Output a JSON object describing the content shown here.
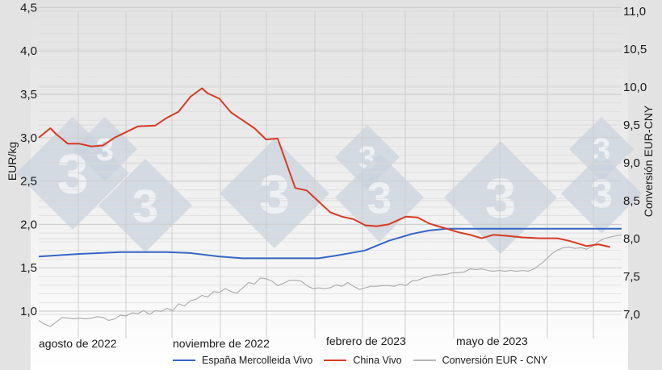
{
  "chart_data": {
    "type": "line",
    "title": "",
    "xlabel": "",
    "ylabel": "EUR/kg",
    "y2label": "Conversión EUR-CNY",
    "ylim": [
      0.8,
      4.5
    ],
    "y2lim": [
      6.8,
      11.0
    ],
    "yticks": [
      "4,5",
      "4,0",
      "3,5",
      "3,0",
      "2,5",
      "2,0",
      "1,5",
      "1,0"
    ],
    "y2ticks": [
      "11,0",
      "10,5",
      "10,0",
      "9,5",
      "9,0",
      "8,5",
      "8,0",
      "7,5",
      "7,0"
    ],
    "xticks": [
      "agosto de 2022",
      "noviembre de 2022",
      "febrero de 2023",
      "mayo de 2023"
    ],
    "grid": true,
    "legend_position": "bottom",
    "series": [
      {
        "name": "España Mercolleida Vivo",
        "axis": "left",
        "color": "#3566c4",
        "points": [
          [
            0,
            1.63
          ],
          [
            7,
            1.66
          ],
          [
            14,
            1.68
          ],
          [
            22,
            1.68
          ],
          [
            26,
            1.67
          ],
          [
            31,
            1.63
          ],
          [
            35,
            1.61
          ],
          [
            43,
            1.61
          ],
          [
            48,
            1.61
          ],
          [
            51,
            1.64
          ],
          [
            56,
            1.7
          ],
          [
            60,
            1.81
          ],
          [
            64,
            1.89
          ],
          [
            67,
            1.93
          ],
          [
            70,
            1.95
          ],
          [
            74,
            1.95
          ],
          [
            100,
            1.95
          ]
        ]
      },
      {
        "name": "China Vivo",
        "axis": "left",
        "color": "#d63b25",
        "points": [
          [
            0,
            3.0
          ],
          [
            2,
            3.11
          ],
          [
            3,
            3.04
          ],
          [
            5,
            2.93
          ],
          [
            7,
            2.93
          ],
          [
            9,
            2.9
          ],
          [
            11,
            2.91
          ],
          [
            13,
            3.0
          ],
          [
            17,
            3.13
          ],
          [
            20,
            3.14
          ],
          [
            22,
            3.23
          ],
          [
            24,
            3.3
          ],
          [
            26,
            3.47
          ],
          [
            28,
            3.57
          ],
          [
            29,
            3.51
          ],
          [
            31,
            3.45
          ],
          [
            33,
            3.29
          ],
          [
            37,
            3.11
          ],
          [
            39,
            2.98
          ],
          [
            41,
            2.99
          ],
          [
            44,
            2.42
          ],
          [
            46,
            2.39
          ],
          [
            50,
            2.14
          ],
          [
            52,
            2.09
          ],
          [
            54,
            2.06
          ],
          [
            56,
            1.99
          ],
          [
            58,
            1.98
          ],
          [
            60,
            2.0
          ],
          [
            63,
            2.09
          ],
          [
            65,
            2.08
          ],
          [
            67,
            2.01
          ],
          [
            68,
            1.99
          ],
          [
            72,
            1.91
          ],
          [
            74,
            1.88
          ],
          [
            76,
            1.84
          ],
          [
            78,
            1.88
          ],
          [
            80,
            1.87
          ],
          [
            83,
            1.85
          ],
          [
            86,
            1.84
          ],
          [
            89,
            1.84
          ],
          [
            91,
            1.81
          ],
          [
            94,
            1.75
          ],
          [
            96,
            1.77
          ],
          [
            98,
            1.74
          ]
        ]
      },
      {
        "name": "Conversión EUR - CNY",
        "axis": "right",
        "color": "#a9a9a9",
        "points": [
          [
            0,
            6.92
          ],
          [
            1,
            6.87
          ],
          [
            2,
            6.84
          ],
          [
            3,
            6.9
          ],
          [
            4,
            6.96
          ],
          [
            5,
            6.95
          ],
          [
            6,
            6.94
          ],
          [
            7,
            6.95
          ],
          [
            8,
            6.94
          ],
          [
            9,
            6.95
          ],
          [
            10,
            6.97
          ],
          [
            11,
            6.96
          ],
          [
            12,
            6.92
          ],
          [
            13,
            6.94
          ],
          [
            14,
            6.99
          ],
          [
            15,
            6.98
          ],
          [
            16,
            7.02
          ],
          [
            17,
            7.01
          ],
          [
            18,
            7.05
          ],
          [
            19,
            7.0
          ],
          [
            20,
            7.05
          ],
          [
            21,
            7.04
          ],
          [
            22,
            7.08
          ],
          [
            23,
            7.05
          ],
          [
            24,
            7.14
          ],
          [
            25,
            7.11
          ],
          [
            26,
            7.18
          ],
          [
            27,
            7.2
          ],
          [
            28,
            7.25
          ],
          [
            29,
            7.23
          ],
          [
            30,
            7.3
          ],
          [
            31,
            7.29
          ],
          [
            32,
            7.34
          ],
          [
            33,
            7.3
          ],
          [
            34,
            7.28
          ],
          [
            35,
            7.35
          ],
          [
            36,
            7.42
          ],
          [
            37,
            7.4
          ],
          [
            38,
            7.48
          ],
          [
            39,
            7.47
          ],
          [
            40,
            7.44
          ],
          [
            41,
            7.38
          ],
          [
            42,
            7.41
          ],
          [
            43,
            7.45
          ],
          [
            44,
            7.45
          ],
          [
            45,
            7.44
          ],
          [
            46,
            7.38
          ],
          [
            47,
            7.34
          ],
          [
            48,
            7.35
          ],
          [
            49,
            7.34
          ],
          [
            50,
            7.35
          ],
          [
            51,
            7.39
          ],
          [
            52,
            7.37
          ],
          [
            53,
            7.42
          ],
          [
            54,
            7.37
          ],
          [
            55,
            7.33
          ],
          [
            56,
            7.35
          ],
          [
            57,
            7.37
          ],
          [
            58,
            7.37
          ],
          [
            59,
            7.38
          ],
          [
            60,
            7.38
          ],
          [
            61,
            7.37
          ],
          [
            62,
            7.4
          ],
          [
            63,
            7.38
          ],
          [
            64,
            7.44
          ],
          [
            65,
            7.45
          ],
          [
            66,
            7.48
          ],
          [
            67,
            7.5
          ],
          [
            68,
            7.52
          ],
          [
            69,
            7.52
          ],
          [
            70,
            7.53
          ],
          [
            71,
            7.55
          ],
          [
            72,
            7.55
          ],
          [
            73,
            7.56
          ],
          [
            74,
            7.6
          ],
          [
            75,
            7.59
          ],
          [
            76,
            7.6
          ],
          [
            77,
            7.58
          ],
          [
            78,
            7.57
          ],
          [
            79,
            7.58
          ],
          [
            80,
            7.57
          ],
          [
            81,
            7.58
          ],
          [
            82,
            7.57
          ],
          [
            83,
            7.58
          ],
          [
            84,
            7.57
          ],
          [
            85,
            7.6
          ],
          [
            86,
            7.66
          ],
          [
            87,
            7.72
          ],
          [
            88,
            7.8
          ],
          [
            89,
            7.85
          ],
          [
            90,
            7.88
          ],
          [
            91,
            7.89
          ],
          [
            92,
            7.87
          ],
          [
            93,
            7.88
          ],
          [
            94,
            7.86
          ],
          [
            95,
            7.9
          ],
          [
            96,
            7.96
          ],
          [
            97,
            8.0
          ],
          [
            98,
            8.02
          ],
          [
            100,
            8.05
          ]
        ]
      }
    ]
  },
  "legend": {
    "items": [
      {
        "label": "España Mercolleida Vivo",
        "color": "#3566c4"
      },
      {
        "label": "China Vivo",
        "color": "#d63b25"
      },
      {
        "label": "Conversión EUR - CNY",
        "color": "#b5b5b5"
      }
    ]
  }
}
